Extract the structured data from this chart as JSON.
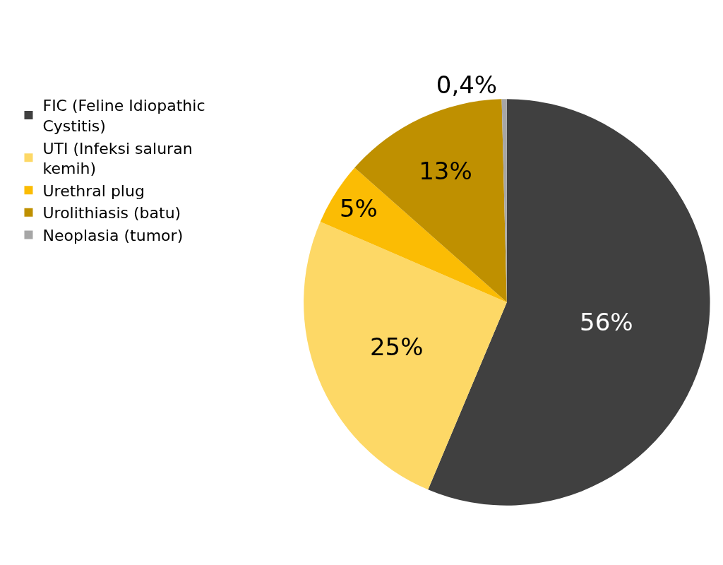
{
  "chart_data": {
    "type": "pie",
    "categories": [
      "FIC (Feline Idiopathic Cystitis)",
      "UTI (Infeksi saluran kemih)",
      "Urethral plug",
      "Urolithiasis (batu)",
      "Neoplasia (tumor)"
    ],
    "values": [
      56,
      25,
      5,
      13,
      0.4
    ],
    "colors": [
      "#404040",
      "#fdd866",
      "#fbbc04",
      "#bf9000",
      "#a6a6a6"
    ],
    "value_labels": [
      "56%",
      "25%",
      "5%",
      "13%",
      "0,4%"
    ],
    "legend": "left"
  }
}
